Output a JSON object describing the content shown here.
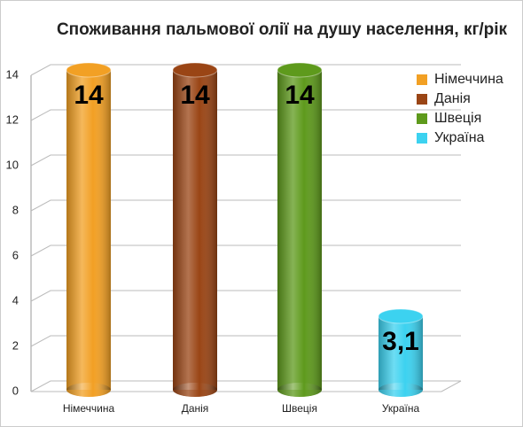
{
  "chart_data": {
    "type": "bar",
    "title": "Споживання пальмової олії на душу населення, кг/рік",
    "categories": [
      "Німеччина",
      "Данія",
      "Швеція",
      "Україна"
    ],
    "values": [
      14,
      14,
      14,
      3.1
    ],
    "value_labels": [
      "14",
      "14",
      "14",
      "3,1"
    ],
    "colors": [
      "#f2a024",
      "#9a4515",
      "#5e9a1c",
      "#3cd2f0"
    ],
    "ylim": [
      0,
      14
    ],
    "yticks": [
      0,
      2,
      4,
      6,
      8,
      10,
      12,
      14
    ],
    "grid": true,
    "legend": "right"
  }
}
